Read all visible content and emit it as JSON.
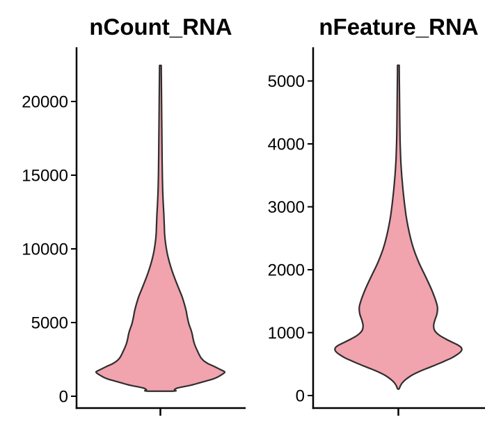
{
  "figure": {
    "background_color": "#FFFFFF",
    "text_color": "#000000",
    "axis_color": "#000000",
    "violin_fill_color": "#F1A3AE",
    "violin_stroke_color": "#2E2E2E"
  },
  "chart_data": [
    {
      "type": "violin",
      "title": "nCount_RNA",
      "xlabel": "",
      "ylabel": "",
      "ylim": [
        0,
        22500
      ],
      "yticks": [
        0,
        5000,
        10000,
        15000,
        20000
      ],
      "ytick_labels": [
        "0",
        "5000",
        "10000",
        "15000",
        "20000"
      ],
      "grid": false,
      "legend": false,
      "max_value": 22450,
      "min_value": 350,
      "widest_at_value": 1650,
      "bottom_shape": "flat",
      "profile": [
        [
          22450,
          1.2
        ],
        [
          21000,
          1.5
        ],
        [
          19500,
          1.8
        ],
        [
          18000,
          2.1
        ],
        [
          16500,
          2.4
        ],
        [
          15000,
          2.8
        ],
        [
          14000,
          3.3
        ],
        [
          13000,
          4.2
        ],
        [
          12300,
          5.0
        ],
        [
          11600,
          5.6
        ],
        [
          11000,
          6.1
        ],
        [
          10400,
          7.4
        ],
        [
          9800,
          9.4
        ],
        [
          9300,
          11.8
        ],
        [
          8800,
          14.8
        ],
        [
          8300,
          18.3
        ],
        [
          7800,
          22.3
        ],
        [
          7300,
          26.5
        ],
        [
          6800,
          30.8
        ],
        [
          6300,
          34.2
        ],
        [
          5800,
          37.0
        ],
        [
          5300,
          39.0
        ],
        [
          4900,
          41.0
        ],
        [
          4500,
          44.0
        ],
        [
          4200,
          45.8
        ],
        [
          3900,
          47.0
        ],
        [
          3600,
          48.6
        ],
        [
          3300,
          51.0
        ],
        [
          3000,
          54.0
        ],
        [
          2800,
          56.0
        ],
        [
          2600,
          58.5
        ],
        [
          2400,
          62.5
        ],
        [
          2200,
          69.0
        ],
        [
          2050,
          76.0
        ],
        [
          1900,
          82.5
        ],
        [
          1750,
          89.0
        ],
        [
          1650,
          92.5
        ],
        [
          1550,
          91.0
        ],
        [
          1450,
          87.5
        ],
        [
          1350,
          84.0
        ],
        [
          1250,
          80.0
        ],
        [
          1150,
          74.5
        ],
        [
          1050,
          67.0
        ],
        [
          950,
          59.0
        ],
        [
          850,
          52.0
        ],
        [
          780,
          46.5
        ],
        [
          700,
          39.0
        ],
        [
          620,
          30.0
        ],
        [
          550,
          24.0
        ],
        [
          480,
          21.0
        ],
        [
          420,
          20.0
        ],
        [
          350,
          19.5
        ]
      ]
    },
    {
      "type": "violin",
      "title": "nFeature_RNA",
      "xlabel": "",
      "ylabel": "",
      "ylim": [
        0,
        5250
      ],
      "yticks": [
        0,
        1000,
        2000,
        3000,
        4000,
        5000
      ],
      "ytick_labels": [
        "0",
        "1000",
        "2000",
        "3000",
        "4000",
        "5000"
      ],
      "grid": false,
      "legend": false,
      "max_value": 5250,
      "min_value": 105,
      "widest_at_value": 740,
      "bottom_shape": "point",
      "profile": [
        [
          5250,
          1.2
        ],
        [
          5000,
          1.4
        ],
        [
          4700,
          1.7
        ],
        [
          4400,
          2.0
        ],
        [
          4100,
          2.4
        ],
        [
          3900,
          2.9
        ],
        [
          3750,
          3.4
        ],
        [
          3600,
          4.2
        ],
        [
          3450,
          5.2
        ],
        [
          3300,
          6.4
        ],
        [
          3150,
          7.8
        ],
        [
          3000,
          9.4
        ],
        [
          2850,
          11.2
        ],
        [
          2700,
          13.6
        ],
        [
          2550,
          16.5
        ],
        [
          2400,
          20.0
        ],
        [
          2250,
          24.5
        ],
        [
          2100,
          30.0
        ],
        [
          1950,
          36.5
        ],
        [
          1800,
          43.0
        ],
        [
          1650,
          49.0
        ],
        [
          1500,
          54.0
        ],
        [
          1400,
          56.2
        ],
        [
          1300,
          55.5
        ],
        [
          1200,
          52.5
        ],
        [
          1120,
          50.8
        ],
        [
          1050,
          51.5
        ],
        [
          1000,
          54.5
        ],
        [
          950,
          60.0
        ],
        [
          900,
          68.0
        ],
        [
          850,
          77.0
        ],
        [
          800,
          86.0
        ],
        [
          760,
          90.5
        ],
        [
          720,
          91.0
        ],
        [
          680,
          88.0
        ],
        [
          640,
          83.0
        ],
        [
          600,
          77.0
        ],
        [
          560,
          69.0
        ],
        [
          520,
          61.0
        ],
        [
          480,
          52.0
        ],
        [
          440,
          43.0
        ],
        [
          400,
          34.0
        ],
        [
          360,
          26.0
        ],
        [
          320,
          19.0
        ],
        [
          280,
          13.5
        ],
        [
          240,
          9.0
        ],
        [
          200,
          5.5
        ],
        [
          160,
          3.2
        ],
        [
          130,
          2.0
        ],
        [
          105,
          1.0
        ]
      ]
    }
  ]
}
